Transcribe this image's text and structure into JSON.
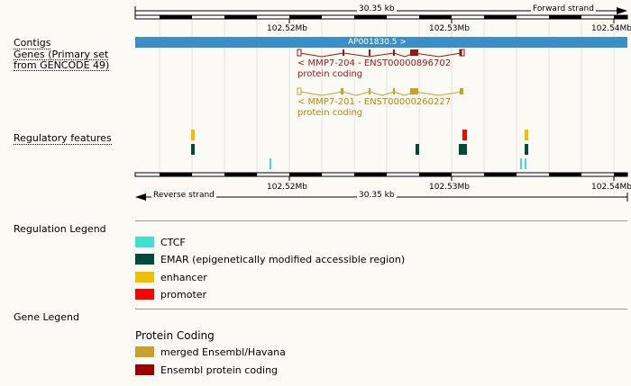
{
  "top_ruler": {
    "length": "30.35 kb",
    "strand": "Forward strand"
  },
  "bottom_ruler": {
    "length": "30.35 kb",
    "strand": "Reverse strand"
  },
  "ticks": [
    "102.52Mb",
    "102.53Mb",
    "102.54Mb"
  ],
  "tracks": {
    "contigs": {
      "label": "Contigs",
      "contig_name": "AP001830.5 >"
    },
    "genes": {
      "label_line1": "Genes (Primary set",
      "label_line2": "from GENCODE 49)"
    },
    "regulatory": {
      "label": "Regulatory features"
    }
  },
  "transcripts": [
    {
      "name": "< MMP7-204 - ENST00000896702",
      "biotype": "protein coding",
      "color": "#9e1414"
    },
    {
      "name": "< MMP7-201 - ENST00000260227",
      "biotype": "protein coding",
      "color": "#b8860b"
    }
  ],
  "regulation_legend": {
    "heading": "Regulation Legend",
    "items": [
      {
        "label": "CTCF",
        "color": "#40e0d0"
      },
      {
        "label": "EMAR (epigenetically modified accessible region)",
        "color": "#004a3a"
      },
      {
        "label": "enhancer",
        "color": "#f0c000"
      },
      {
        "label": "promoter",
        "color": "#ff0000"
      }
    ]
  },
  "gene_legend": {
    "heading": "Gene Legend",
    "subheading": "Protein Coding",
    "items": [
      {
        "label": "merged Ensembl/Havana",
        "color": "#c8a02a"
      },
      {
        "label": "Ensembl protein coding",
        "color": "#9e0000"
      }
    ]
  }
}
